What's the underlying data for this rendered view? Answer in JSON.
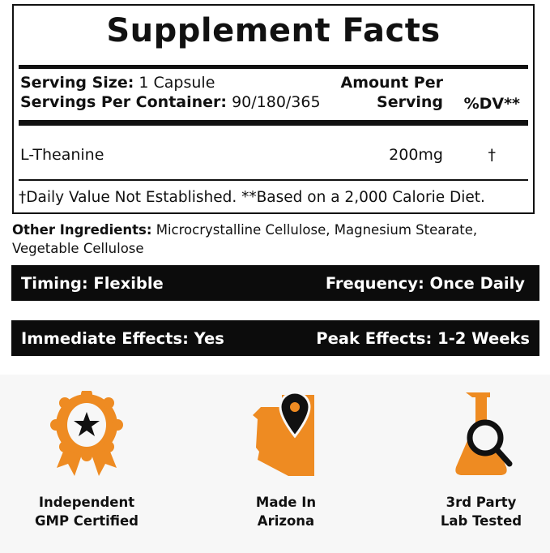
{
  "facts": {
    "title": "Supplement Facts",
    "serving_size_label": "Serving Size:",
    "serving_size_value": "1 Capsule",
    "servings_label": "Servings Per Container:",
    "servings_value": "90/180/365",
    "amount_header_1": "Amount Per",
    "amount_header_2": "Serving",
    "dv_header": "%DV**",
    "ingredient": {
      "name": "L-Theanine",
      "amount": "200mg",
      "dv": "†"
    },
    "footnote": "†Daily Value Not Established. **Based on a 2,000 Calorie Diet."
  },
  "other_ingredients": {
    "label": "Other Ingredients:",
    "line1": "Microcrystalline Cellulose, Magnesium Stearate,",
    "line2": "Vegetable Cellulose"
  },
  "bars": [
    {
      "left": "Timing: Flexible",
      "right": "Frequency: Once Daily"
    },
    {
      "left": "Immediate Effects:  Yes",
      "right": "Peak Effects: 1-2 Weeks"
    }
  ],
  "badges": [
    {
      "icon": "award-ribbon-star-icon",
      "line1": "Independent",
      "line2": "GMP Certified"
    },
    {
      "icon": "arizona-map-pin-icon",
      "line1": "Made In",
      "line2": "Arizona"
    },
    {
      "icon": "flask-magnifier-icon",
      "line1": "3rd Party",
      "line2": "Lab Tested"
    }
  ],
  "colors": {
    "accent": "#ee8b22",
    "dark": "#0c0c0c",
    "background": "#f7f7f7"
  }
}
